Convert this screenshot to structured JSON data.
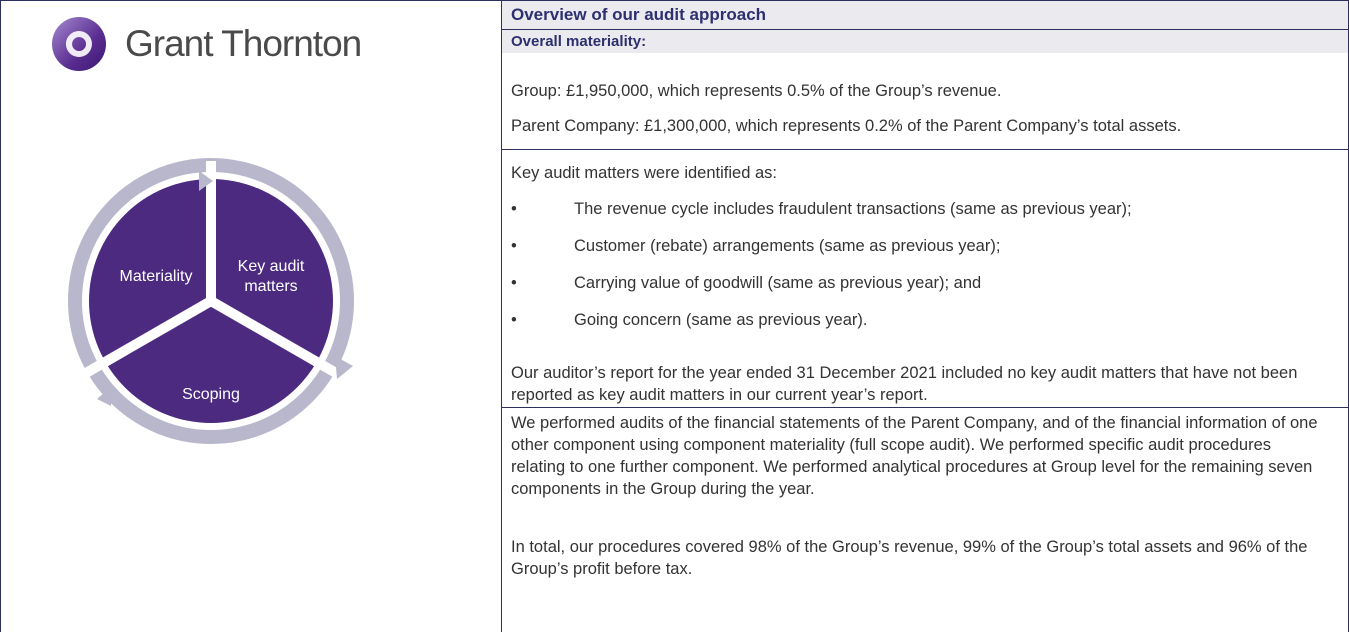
{
  "header": {
    "logo_text": "Grant Thornton"
  },
  "diagram": {
    "segments": [
      "Materiality",
      "Key audit matters",
      "Scoping"
    ]
  },
  "panel": {
    "title": "Overview of our audit approach",
    "materiality": {
      "heading": "Overall materiality:",
      "paragraphs": [
        "Group: £1,950,000, which represents 0.5% of the Group’s revenue.",
        "Parent Company: £1,300,000, which represents 0.2% of the Parent Company’s total assets."
      ]
    },
    "key_audit_matters": {
      "intro": "Key audit matters were identified as:",
      "bullets": [
        "The revenue cycle includes fraudulent transactions (same as previous year);",
        "Customer (rebate) arrangements (same as previous year);",
        "Carrying value of goodwill (same as previous year); and",
        "Going concern (same as previous year)."
      ],
      "closing": "Our auditor’s report for the year ended 31 December 2021 included no key audit matters that have not been reported as key audit matters in our current year’s report."
    },
    "scoping": {
      "paragraphs": [
        "We performed audits of the financial statements of the Parent Company, and of the financial information of one other component using component materiality (full scope audit). We performed specific audit procedures relating to one further component. We performed analytical procedures at Group level for the remaining seven components in the Group during the year.",
        "In total, our procedures covered 98% of the Group’s revenue, 99% of the Group’s total assets and 96% of the Group’s profit before tax."
      ]
    }
  }
}
